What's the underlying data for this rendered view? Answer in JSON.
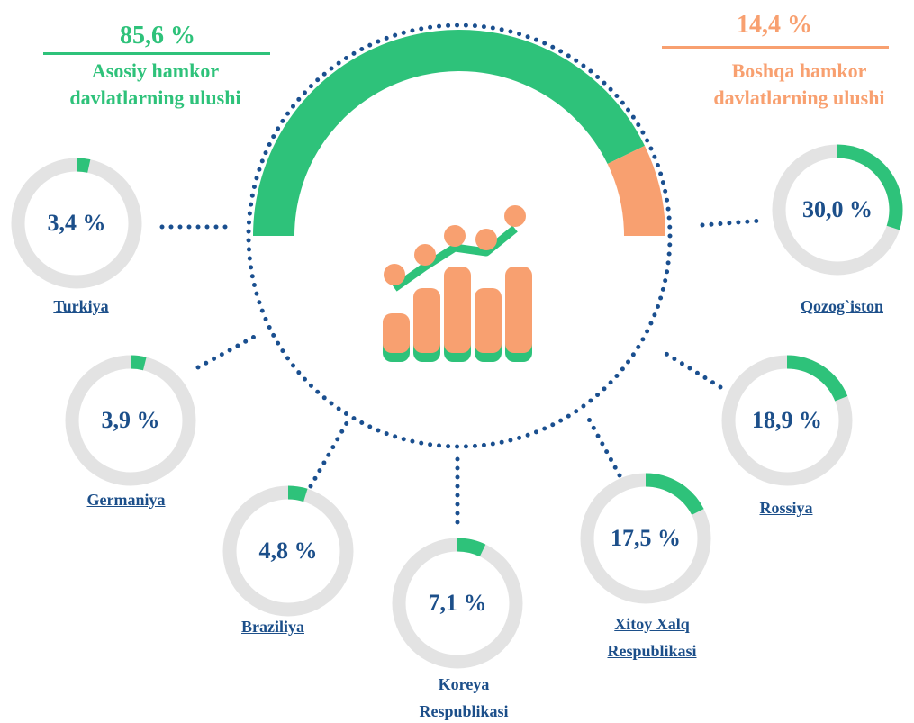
{
  "chart_data": {
    "type": "gauge",
    "main": {
      "value": 85.6,
      "label": "85,6 %",
      "name": "Asosiy hamkor davlatlarning ulushi",
      "color": "#2ec27a"
    },
    "other": {
      "value": 14.4,
      "label": "14,4 %",
      "name": "Boshqa hamkor davlatlarning ulushi",
      "color": "#f8a070"
    },
    "categories": [
      "Turkiya",
      "Germaniya",
      "Braziliya",
      "Koreya Respublikasi",
      "Xitoy Xalq Respublikasi",
      "Rossiya",
      "Qozog`iston"
    ],
    "values": [
      3.4,
      3.9,
      4.8,
      7.1,
      17.5,
      18.9,
      30.0
    ],
    "value_labels": [
      "3,4 %",
      "3,9 %",
      "4,8 %",
      "7,1 %",
      "17,5 %",
      "18,9 %",
      "30,0 %"
    ],
    "color": "#2ec27a"
  }
}
